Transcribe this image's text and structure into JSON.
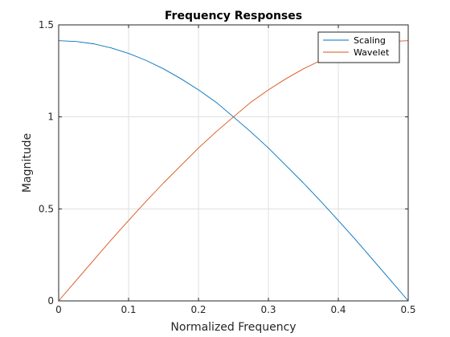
{
  "chart_data": {
    "type": "line",
    "title": "Frequency Responses",
    "xlabel": "Normalized Frequency",
    "ylabel": "Magnitude",
    "xlim": [
      0,
      0.5
    ],
    "ylim": [
      0,
      1.5
    ],
    "xticks": [
      0,
      0.1,
      0.2,
      0.3,
      0.4,
      0.5
    ],
    "xtick_labels": [
      "0",
      "0.1",
      "0.2",
      "0.3",
      "0.4",
      "0.5"
    ],
    "yticks": [
      0,
      0.5,
      1,
      1.5
    ],
    "ytick_labels": [
      "0",
      "0.5",
      "1",
      "1.5"
    ],
    "grid": true,
    "legend_position": "top-right",
    "x": [
      0,
      0.025,
      0.05,
      0.075,
      0.1,
      0.125,
      0.15,
      0.175,
      0.2,
      0.225,
      0.25,
      0.275,
      0.3,
      0.325,
      0.35,
      0.375,
      0.4,
      0.425,
      0.45,
      0.475,
      0.5
    ],
    "series": [
      {
        "name": "Scaling",
        "color": "#0072BD",
        "values": [
          1.414,
          1.41,
          1.397,
          1.375,
          1.345,
          1.307,
          1.261,
          1.207,
          1.147,
          1.08,
          1.0,
          0.918,
          0.831,
          0.736,
          0.641,
          0.541,
          0.437,
          0.331,
          0.221,
          0.111,
          0.0
        ]
      },
      {
        "name": "Wavelet",
        "color": "#D95319",
        "values": [
          0.0,
          0.111,
          0.221,
          0.331,
          0.437,
          0.541,
          0.641,
          0.736,
          0.831,
          0.918,
          1.0,
          1.08,
          1.147,
          1.207,
          1.261,
          1.307,
          1.345,
          1.375,
          1.397,
          1.41,
          1.414
        ]
      }
    ]
  }
}
